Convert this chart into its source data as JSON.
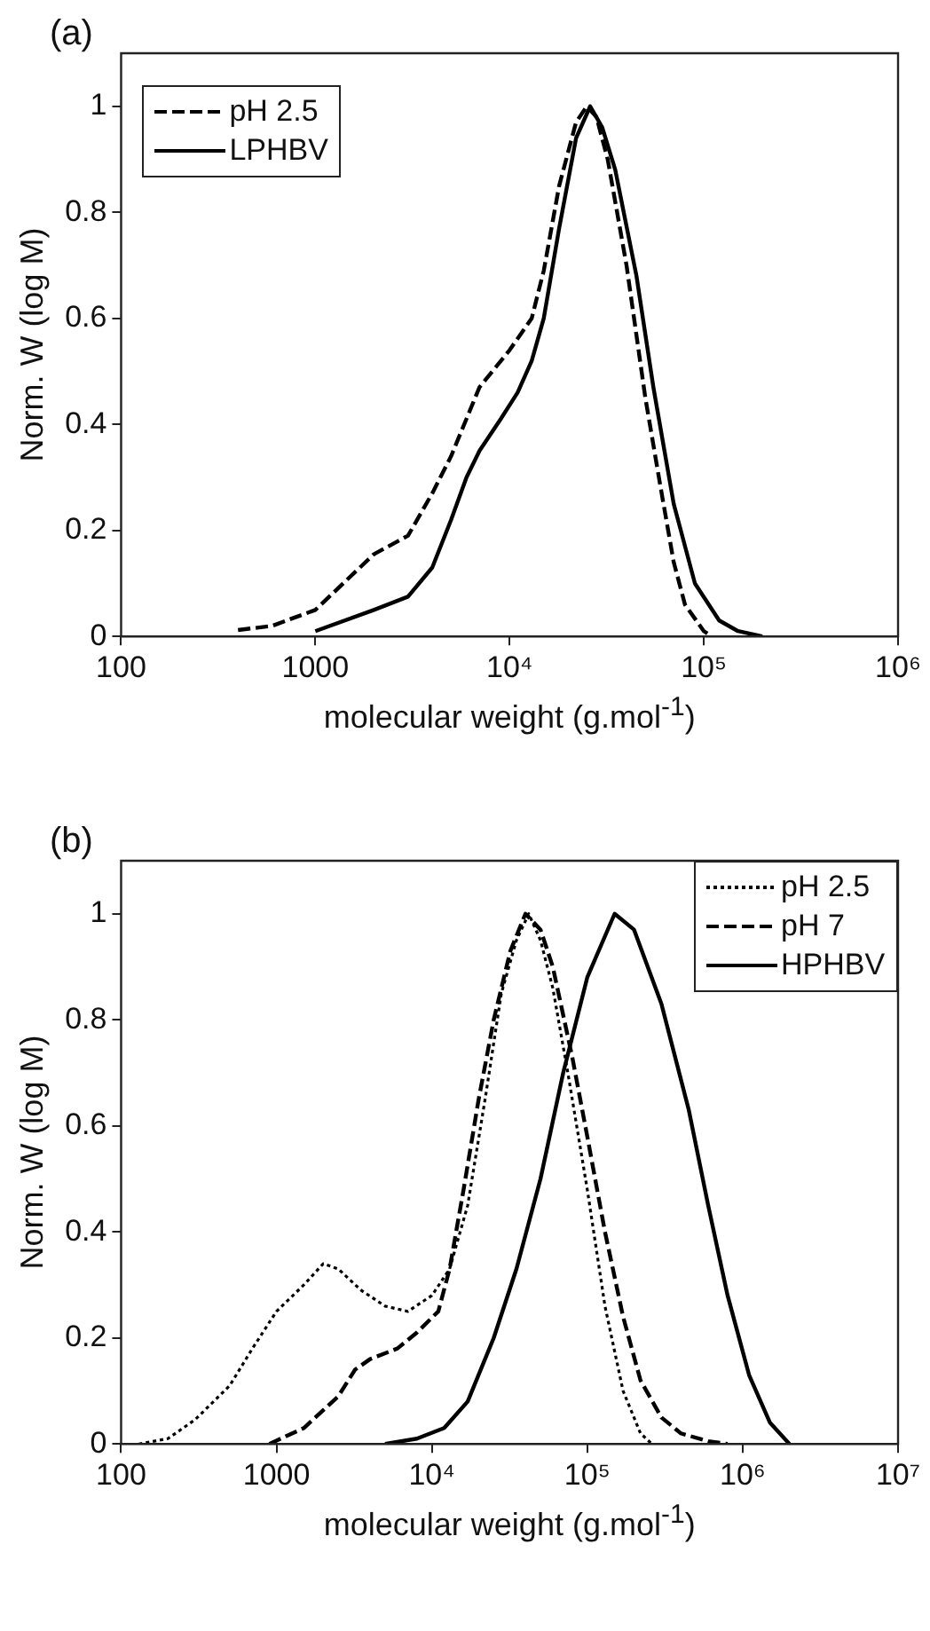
{
  "chart_data": [
    {
      "type": "line",
      "title": "(a)",
      "xlabel": "molecular weight (g.mol$^{-1}$)",
      "ylabel": "Norm. W (log M)",
      "log": "x",
      "xlim": [
        100,
        1000000
      ],
      "xticks": [
        {
          "value": 100,
          "label": "100"
        },
        {
          "value": 1000,
          "label": "1000"
        },
        {
          "value": 10000,
          "label": "10⁴"
        },
        {
          "value": 100000,
          "label": "10⁵"
        },
        {
          "value": 1000000,
          "label": "10⁶"
        }
      ],
      "ylim": [
        0,
        1.1
      ],
      "yticks": [
        0,
        0.2,
        0.4,
        0.6,
        0.8,
        1
      ],
      "grid": false,
      "legend": "top left",
      "marker": "none",
      "series": [
        {
          "name": "pH 2.5",
          "color": "#000000",
          "line_style": "dashed",
          "x": [
            400,
            600,
            1000,
            2000,
            3000,
            4000,
            5000,
            7000,
            10000,
            13000,
            15000,
            18000,
            22000,
            25000,
            28000,
            32000,
            40000,
            50000,
            60000,
            70000,
            80000,
            100000,
            110000
          ],
          "values": [
            0.012,
            0.02,
            0.05,
            0.155,
            0.19,
            0.27,
            0.34,
            0.47,
            0.54,
            0.6,
            0.69,
            0.85,
            0.97,
            1.0,
            0.98,
            0.9,
            0.7,
            0.45,
            0.28,
            0.14,
            0.06,
            0.01,
            0.0
          ]
        },
        {
          "name": "LPHBV",
          "color": "#000000",
          "line_style": "solid",
          "x": [
            1000,
            2000,
            3000,
            4000,
            5000,
            6000,
            7000,
            9000,
            11000,
            13000,
            15000,
            18000,
            22000,
            26000,
            30000,
            35000,
            45000,
            55000,
            70000,
            90000,
            120000,
            150000,
            200000
          ],
          "values": [
            0.01,
            0.05,
            0.075,
            0.13,
            0.22,
            0.3,
            0.35,
            0.41,
            0.46,
            0.52,
            0.6,
            0.77,
            0.94,
            1.0,
            0.96,
            0.88,
            0.68,
            0.47,
            0.25,
            0.1,
            0.03,
            0.01,
            0.0
          ]
        }
      ]
    },
    {
      "type": "line",
      "title": "(b)",
      "xlabel": "molecular weight (g.mol$^{-1}$)",
      "ylabel": "Norm. W (log M)",
      "log": "x",
      "xlim": [
        100,
        10000000
      ],
      "xticks": [
        {
          "value": 100,
          "label": "100"
        },
        {
          "value": 1000,
          "label": "1000"
        },
        {
          "value": 10000,
          "label": "10⁴"
        },
        {
          "value": 100000,
          "label": "10⁵"
        },
        {
          "value": 1000000,
          "label": "10⁶"
        },
        {
          "value": 10000000,
          "label": "10⁷"
        }
      ],
      "ylim": [
        0,
        1.1
      ],
      "yticks": [
        0,
        0.2,
        0.4,
        0.6,
        0.8,
        1
      ],
      "grid": false,
      "legend": "top right",
      "marker": "none",
      "series": [
        {
          "name": "pH 2.5",
          "color": "#000000",
          "line_style": "dotted",
          "x": [
            130,
            200,
            300,
            500,
            700,
            1000,
            1500,
            2000,
            2500,
            3500,
            5000,
            7000,
            10000,
            13000,
            17000,
            22000,
            28000,
            35000,
            42000,
            50000,
            60000,
            75000,
            100000,
            130000,
            170000,
            220000,
            260000
          ],
          "values": [
            0.0,
            0.01,
            0.046,
            0.11,
            0.18,
            0.25,
            0.3,
            0.34,
            0.33,
            0.29,
            0.26,
            0.25,
            0.28,
            0.33,
            0.45,
            0.65,
            0.85,
            0.95,
            1.0,
            0.95,
            0.86,
            0.7,
            0.48,
            0.26,
            0.1,
            0.02,
            0.0
          ]
        },
        {
          "name": "pH 7",
          "color": "#000000",
          "line_style": "dashed",
          "x": [
            900,
            1500,
            2500,
            3200,
            4000,
            6000,
            8000,
            11000,
            13000,
            16000,
            20000,
            25000,
            32000,
            40000,
            50000,
            60000,
            80000,
            100000,
            130000,
            170000,
            220000,
            300000,
            400000,
            600000,
            800000
          ],
          "values": [
            0.0,
            0.03,
            0.09,
            0.14,
            0.16,
            0.18,
            0.21,
            0.25,
            0.33,
            0.48,
            0.65,
            0.8,
            0.93,
            1.0,
            0.97,
            0.9,
            0.73,
            0.58,
            0.4,
            0.24,
            0.12,
            0.05,
            0.02,
            0.005,
            0.0
          ]
        },
        {
          "name": "HPHBV",
          "color": "#000000",
          "line_style": "solid",
          "x": [
            5000,
            8000,
            12000,
            17000,
            25000,
            35000,
            50000,
            70000,
            100000,
            150000,
            200000,
            300000,
            450000,
            600000,
            800000,
            1100000,
            1500000,
            2000000
          ],
          "values": [
            0.0,
            0.01,
            0.03,
            0.08,
            0.2,
            0.33,
            0.5,
            0.7,
            0.88,
            1.0,
            0.97,
            0.83,
            0.63,
            0.45,
            0.28,
            0.13,
            0.04,
            0.0
          ]
        }
      ]
    }
  ]
}
